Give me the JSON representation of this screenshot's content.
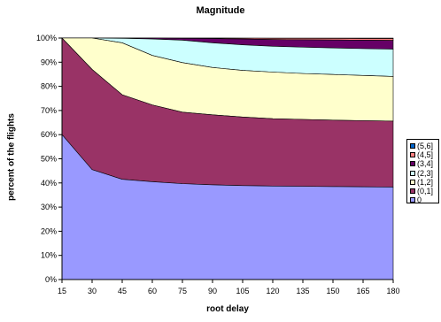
{
  "chart_data": {
    "type": "area",
    "stacked": true,
    "title": "Magnitude",
    "xlabel": "root delay",
    "ylabel": "percent of the flights",
    "x": [
      15,
      30,
      45,
      60,
      75,
      90,
      105,
      120,
      135,
      150,
      165,
      180
    ],
    "ylim": [
      0,
      100
    ],
    "yticks": [
      "0%",
      "10%",
      "20%",
      "30%",
      "40%",
      "50%",
      "60%",
      "70%",
      "80%",
      "90%",
      "100%"
    ],
    "legend_position": "right",
    "series": [
      {
        "name": "0",
        "color": "#9999ff",
        "cumulative": [
          60,
          45.5,
          41.5,
          40.5,
          39.7,
          39.2,
          38.9,
          38.7,
          38.6,
          38.5,
          38.4,
          38.3
        ]
      },
      {
        "name": "(0,1]",
        "color": "#993366",
        "cumulative": [
          100,
          87,
          76.5,
          72.3,
          69.3,
          68.2,
          67.3,
          66.6,
          66.3,
          66.0,
          65.8,
          65.6
        ]
      },
      {
        "name": "(1,2]",
        "color": "#ffffcc",
        "cumulative": [
          100,
          100,
          98,
          92.8,
          89.8,
          87.8,
          86.6,
          85.9,
          85.3,
          84.9,
          84.5,
          84.1
        ]
      },
      {
        "name": "(2,3]",
        "color": "#ccffff",
        "cumulative": [
          100,
          100,
          99.9,
          99.6,
          99.1,
          98.0,
          97.2,
          96.6,
          96.2,
          95.9,
          95.6,
          95.4
        ]
      },
      {
        "name": "(3,4]",
        "color": "#660066",
        "cumulative": [
          100,
          100,
          100,
          100,
          99.9,
          99.8,
          99.6,
          99.4,
          99.3,
          99.2,
          99.1,
          99.0
        ]
      },
      {
        "name": "(4,5]",
        "color": "#ff8080",
        "cumulative": [
          100,
          100,
          100,
          100,
          100,
          100,
          99.95,
          99.9,
          99.9,
          99.85,
          99.8,
          99.8
        ]
      },
      {
        "name": "(5,6]",
        "color": "#0066cc",
        "cumulative": [
          100,
          100,
          100,
          100,
          100,
          100,
          100,
          100,
          100,
          100,
          100,
          100
        ]
      }
    ]
  }
}
